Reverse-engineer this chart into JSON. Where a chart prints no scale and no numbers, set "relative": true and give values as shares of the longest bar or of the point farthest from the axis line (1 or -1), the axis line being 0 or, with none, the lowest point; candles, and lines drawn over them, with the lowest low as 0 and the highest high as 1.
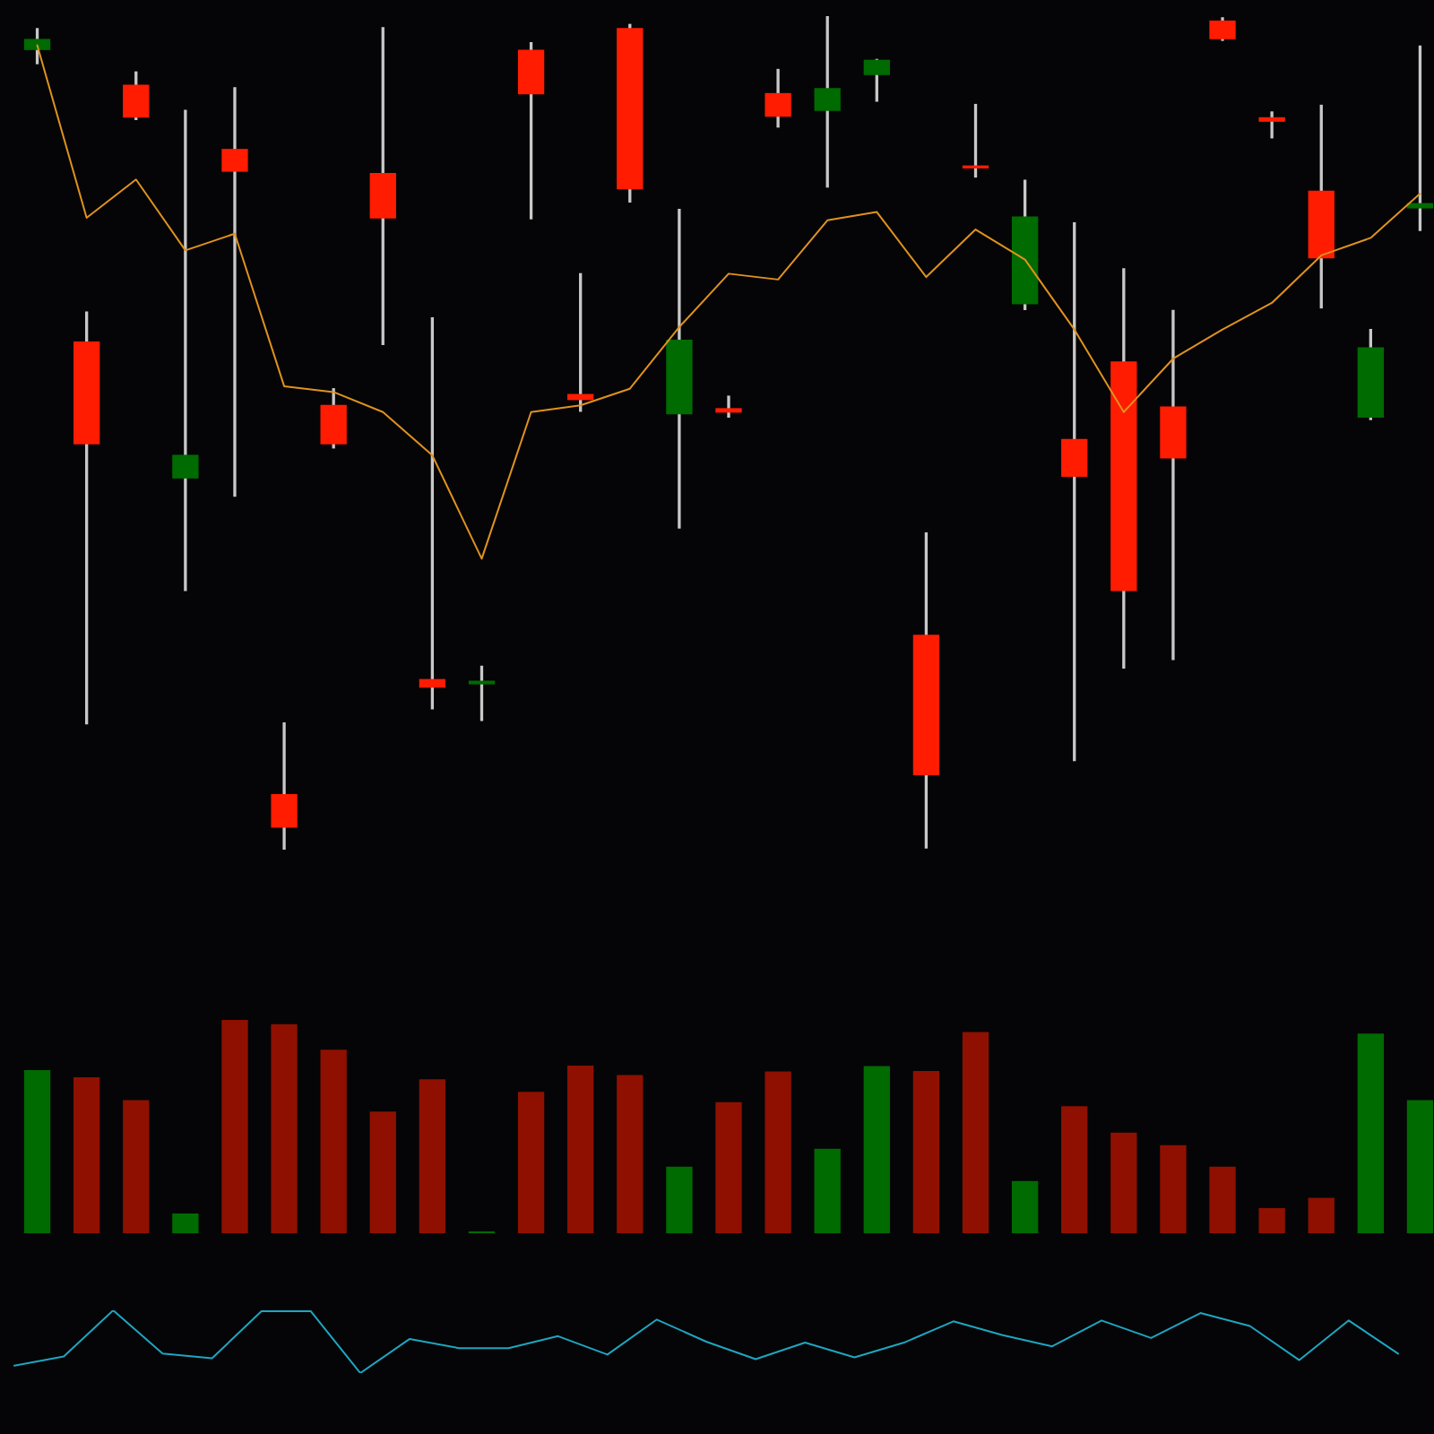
{
  "chart_data": [
    {
      "type": "candlestick",
      "relative": true,
      "tick_labels": false,
      "categories": [
        null,
        null,
        null,
        null,
        null,
        null,
        null,
        null,
        null,
        null,
        null,
        null,
        null,
        null,
        null,
        null,
        null,
        null,
        null,
        null,
        null,
        null,
        null,
        null,
        null,
        null,
        null,
        null,
        null
      ],
      "ohlc": [
        [
          0.96,
          0.985,
          0.943,
          0.972
        ],
        [
          0.609,
          0.645,
          0.151,
          0.487
        ],
        [
          0.917,
          0.933,
          0.876,
          0.879
        ],
        [
          0.446,
          0.887,
          0.311,
          0.473
        ],
        [
          0.84,
          0.914,
          0.424,
          0.814
        ],
        [
          0.066,
          0.152,
          0,
          0.027
        ],
        [
          0.533,
          0.553,
          0.482,
          0.487
        ],
        [
          0.811,
          0.986,
          0.606,
          0.758
        ],
        [
          0.204,
          0.638,
          0.169,
          0.195
        ],
        [
          0.199,
          0.22,
          0.155,
          0.202
        ],
        [
          0.959,
          0.968,
          0.757,
          0.907
        ],
        [
          0.546,
          0.691,
          0.526,
          0.54
        ],
        [
          0.985,
          0.99,
          0.777,
          0.793
        ],
        [
          0.523,
          0.768,
          0.386,
          0.611
        ],
        [
          0.529,
          0.544,
          0.519,
          0.525
        ],
        [
          0.907,
          0.936,
          0.867,
          0.88
        ],
        [
          0.887,
          1,
          0.795,
          0.913
        ],
        [
          0.93,
          0.948,
          0.898,
          0.947
        ],
        [
          0.257,
          0.38,
          0.002,
          0.09
        ],
        [
          0.82,
          0.894,
          0.807,
          0.818
        ],
        [
          0.655,
          0.803,
          0.648,
          0.759
        ],
        [
          0.492,
          0.752,
          0.107,
          0.448
        ],
        [
          0.585,
          0.697,
          0.218,
          0.311
        ],
        [
          0.531,
          0.647,
          0.228,
          0.47
        ],
        [
          0.994,
          0.998,
          0.971,
          0.973
        ],
        [
          0.878,
          0.885,
          0.854,
          0.874
        ],
        [
          0.79,
          0.893,
          0.65,
          0.71
        ],
        [
          0.519,
          0.624,
          0.516,
          0.602
        ],
        [
          0.77,
          0.964,
          0.743,
          0.775
        ]
      ],
      "colors": [
        "#006b00",
        "#ff1c00",
        "#ff1c00",
        "#006b00",
        "#ff1c00",
        "#ff1c00",
        "#ff1c00",
        "#ff1c00",
        "#ff1c00",
        "#006b00",
        "#ff1c00",
        "#ff1c00",
        "#ff1c00",
        "#006b00",
        "#ff1c00",
        "#ff1c00",
        "#006b00",
        "#006b00",
        "#ff1c00",
        "#ff1c00",
        "#006b00",
        "#ff1c00",
        "#ff1c00",
        "#ff1c00",
        "#ff1c00",
        "#ff1c00",
        "#ff1c00",
        "#006b00",
        "#006b00"
      ],
      "series": [
        {
          "type": "line",
          "color": "#e0921e",
          "values": [
            0.965,
            0.758,
            0.804,
            0.719,
            0.739,
            0.556,
            0.549,
            0.525,
            0.473,
            0.349,
            0.525,
            0.533,
            0.553,
            0.627,
            0.691,
            0.684,
            0.755,
            0.765,
            0.687,
            0.744,
            0.708,
            0.624,
            0.525,
            0.589,
            0.624,
            0.656,
            0.713,
            0.734,
            0.787
          ]
        }
      ]
    },
    {
      "type": "bar",
      "relative": true,
      "tick_labels": false,
      "categories": [
        null,
        null,
        null,
        null,
        null,
        null,
        null,
        null,
        null,
        null,
        null,
        null,
        null,
        null,
        null,
        null,
        null,
        null,
        null,
        null,
        null,
        null,
        null,
        null,
        null,
        null,
        null,
        null,
        null
      ],
      "values": [
        0.762,
        0.728,
        0.621,
        0.09,
        1,
        0.977,
        0.857,
        0.568,
        0.719,
        0.006,
        0.66,
        0.783,
        0.739,
        0.309,
        0.612,
        0.756,
        0.393,
        0.781,
        0.758,
        0.941,
        0.242,
        0.593,
        0.469,
        0.41,
        0.309,
        0.115,
        0.163,
        0.933,
        0.621
      ],
      "colors": [
        "#006b00",
        "#8f1000",
        "#8f1000",
        "#006b00",
        "#8f1000",
        "#8f1000",
        "#8f1000",
        "#8f1000",
        "#8f1000",
        "#006b00",
        "#8f1000",
        "#8f1000",
        "#8f1000",
        "#006b00",
        "#8f1000",
        "#8f1000",
        "#006b00",
        "#006b00",
        "#8f1000",
        "#8f1000",
        "#006b00",
        "#8f1000",
        "#8f1000",
        "#8f1000",
        "#8f1000",
        "#8f1000",
        "#8f1000",
        "#006b00",
        "#006b00"
      ]
    },
    {
      "type": "line",
      "relative": true,
      "tick_labels": false,
      "color": "#1fa5c0",
      "categories": [
        null,
        null,
        null,
        null,
        null,
        null,
        null,
        null,
        null,
        null,
        null,
        null,
        null,
        null,
        null,
        null,
        null,
        null,
        null,
        null,
        null,
        null,
        null,
        null,
        null,
        null,
        null,
        null,
        null
      ],
      "values": [
        0.118,
        0.265,
        1,
        0.309,
        0.235,
        0.985,
        0.985,
        0,
        0.544,
        0.397,
        0.397,
        0.588,
        0.294,
        0.853,
        0.5,
        0.221,
        0.485,
        0.25,
        0.485,
        0.824,
        0.603,
        0.426,
        0.838,
        0.559,
        0.956,
        0.75,
        0.206,
        0.838,
        0.309
      ]
    }
  ]
}
